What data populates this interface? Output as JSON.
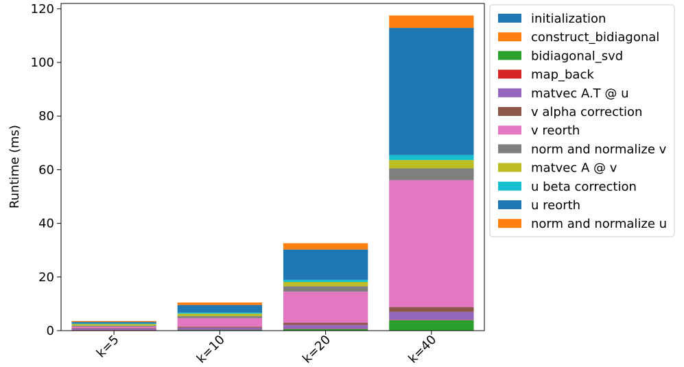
{
  "chart_data": {
    "type": "bar",
    "stacked": true,
    "title": "",
    "xlabel": "",
    "ylabel": "Runtime (ms)",
    "ylim": [
      0,
      122
    ],
    "yticks": [
      0,
      20,
      40,
      60,
      80,
      100,
      120
    ],
    "categories": [
      "k=5",
      "k=10",
      "k=20",
      "k=40"
    ],
    "legend_position": "outside-right",
    "grid": false,
    "series": [
      {
        "name": "initialization",
        "color": "#1f77b4",
        "values": [
          0.05,
          0.05,
          0.05,
          0.05
        ]
      },
      {
        "name": "construct_bidiagonal",
        "color": "#ff7f0e",
        "values": [
          0.05,
          0.05,
          0.05,
          0.05
        ]
      },
      {
        "name": "bidiagonal_svd",
        "color": "#2ca02c",
        "values": [
          0.1,
          0.2,
          0.5,
          3.8
        ]
      },
      {
        "name": "map_back",
        "color": "#d62728",
        "values": [
          0.05,
          0.05,
          0.05,
          0.1
        ]
      },
      {
        "name": "matvec A.T @ u",
        "color": "#9467bd",
        "values": [
          0.5,
          0.7,
          1.5,
          3.0
        ]
      },
      {
        "name": "v alpha correction",
        "color": "#8c564b",
        "values": [
          0.2,
          0.4,
          0.8,
          1.8
        ]
      },
      {
        "name": "v reorth",
        "color": "#e377c2",
        "values": [
          0.6,
          3.2,
          11.6,
          47.3
        ]
      },
      {
        "name": "norm and normalize v",
        "color": "#7f7f7f",
        "values": [
          0.3,
          0.8,
          2.0,
          4.4
        ]
      },
      {
        "name": "matvec A @ v",
        "color": "#bcbd22",
        "values": [
          0.6,
          0.9,
          1.6,
          3.1
        ]
      },
      {
        "name": "u beta correction",
        "color": "#17becf",
        "values": [
          0.2,
          0.4,
          0.8,
          1.9
        ]
      },
      {
        "name": "u reorth",
        "color": "#1f77b4",
        "values": [
          0.6,
          2.8,
          11.3,
          47.4
        ]
      },
      {
        "name": "norm and normalize u",
        "color": "#ff7f0e",
        "values": [
          0.35,
          0.95,
          2.35,
          4.6
        ]
      }
    ]
  }
}
